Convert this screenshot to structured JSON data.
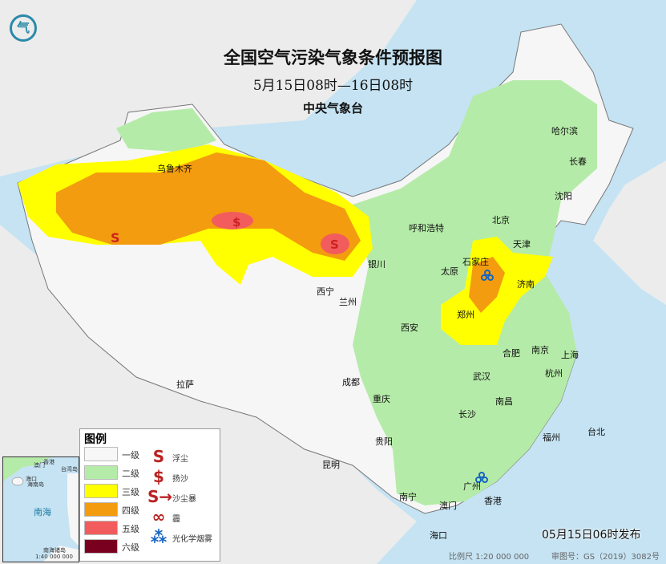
{
  "header": {
    "title": "全国空气污染气象条件预报图",
    "period": "5月15日08时—16日08时",
    "issuer": "中央气象台",
    "logo_icon": "cma-logo"
  },
  "legend": {
    "title": "图例",
    "levels": [
      {
        "label": "一级",
        "color": "#f7f7f7"
      },
      {
        "label": "二级",
        "color": "#b5eba8"
      },
      {
        "label": "三级",
        "color": "#ffff00"
      },
      {
        "label": "四级",
        "color": "#f39c0f"
      },
      {
        "label": "五级",
        "color": "#f25c5c"
      },
      {
        "label": "六级",
        "color": "#7a0020"
      }
    ],
    "symbols": [
      {
        "label": "浮尘",
        "icon": "floating-dust-icon"
      },
      {
        "label": "扬沙",
        "icon": "blowing-sand-icon"
      },
      {
        "label": "沙尘暴",
        "icon": "sandstorm-icon"
      },
      {
        "label": "霾",
        "icon": "haze-icon"
      },
      {
        "label": "光化学烟雾",
        "icon": "photochemical-smog-icon"
      }
    ]
  },
  "cities": [
    "乌鲁木齐",
    "呼和浩特",
    "北京",
    "天津",
    "石家庄",
    "太原",
    "济南",
    "银川",
    "西宁",
    "兰州",
    "郑州",
    "西安",
    "合肥",
    "南京",
    "上海",
    "杭州",
    "武汉",
    "成都",
    "重庆",
    "拉萨",
    "长沙",
    "南昌",
    "福州",
    "台北",
    "贵阳",
    "昆明",
    "南宁",
    "广州",
    "香港",
    "澳门",
    "海口",
    "哈尔滨",
    "长春",
    "沈阳"
  ],
  "inset": {
    "labels": [
      "澳门",
      "香港",
      "台湾岛",
      "海口",
      "海南岛",
      "南海",
      "南海诸岛"
    ],
    "scale": "1:40 000 000"
  },
  "footer": {
    "published": "05月15日06时发布",
    "scale": "比例尺 1:20 000 000",
    "map_number": "审图号：GS（2019）3082号"
  }
}
